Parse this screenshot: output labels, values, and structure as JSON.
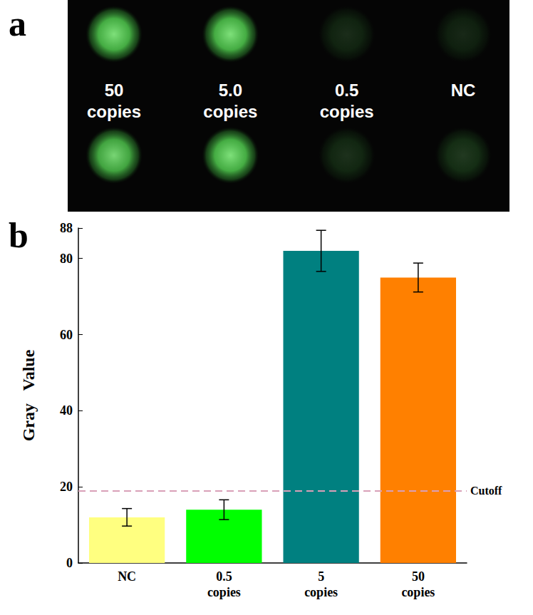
{
  "panel_a": {
    "label": "a",
    "samples": [
      "50 copies",
      "5.0 copies",
      "0.5 copies",
      "NC"
    ],
    "spot_intensity": [
      [
        1.0,
        1.0,
        0.18,
        0.16
      ],
      [
        0.95,
        1.0,
        0.2,
        0.24
      ]
    ]
  },
  "chart_data": {
    "type": "bar",
    "panel_label": "b",
    "ylabel": "Gray   Value",
    "categories": [
      "NC",
      "0.5 copies",
      "5 copies",
      "50 copies"
    ],
    "values": [
      12,
      14,
      82,
      75
    ],
    "errors": [
      2.3,
      2.6,
      5.4,
      3.8
    ],
    "colors": [
      "#ffff80",
      "#00ff00",
      "#008080",
      "#ff8000"
    ],
    "ylim": [
      0,
      88
    ],
    "yticks": [
      0,
      20,
      40,
      60,
      80
    ],
    "cutoff": {
      "value": 19,
      "label": "Cutoff"
    },
    "grid": false
  }
}
